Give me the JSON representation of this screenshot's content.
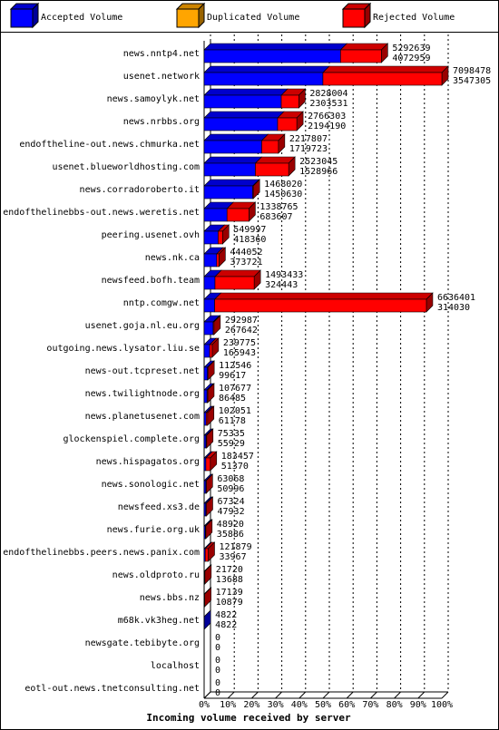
{
  "chart_data": {
    "type": "bar",
    "title": "Incoming volume received by server",
    "series": [
      {
        "name": "Accepted Volume",
        "color": "#0000ff"
      },
      {
        "name": "Duplicated Volume",
        "color": "#ffa500"
      },
      {
        "name": "Rejected Volume",
        "color": "#ff0000"
      }
    ],
    "categories": [
      "news.nntp4.net",
      "usenet.network",
      "news.samoylyk.net",
      "news.nrbbs.org",
      "endoftheline-out.news.chmurka.net",
      "usenet.blueworldhosting.com",
      "news.corradoroberto.it",
      "endofthelinebbs-out.news.weretis.net",
      "peering.usenet.ovh",
      "news.nk.ca",
      "newsfeed.bofh.team",
      "nntp.comgw.net",
      "usenet.goja.nl.eu.org",
      "outgoing.news.lysator.liu.se",
      "news-out.tcpreset.net",
      "news.twilightnode.org",
      "news.planetusenet.com",
      "glockenspiel.complete.org",
      "news.hispagatos.org",
      "news.sonologic.net",
      "newsfeed.xs3.de",
      "news.furie.org.uk",
      "endofthelinebbs.peers.news.panix.com",
      "news.oldproto.ru",
      "news.bbs.nz",
      "m68k.vk3heg.net",
      "newsgate.tebibyte.org",
      "localhost",
      "eotl-out.news.tnetconsulting.net"
    ],
    "totals": [
      5292639,
      7098478,
      2828004,
      2766303,
      2217807,
      2523045,
      1468020,
      1338765,
      549997,
      444052,
      1493433,
      6636401,
      292987,
      239775,
      112546,
      107677,
      102051,
      75335,
      183457,
      63068,
      67324,
      48920,
      121879,
      21720,
      17139,
      4822,
      0,
      0,
      0
    ],
    "accepted": [
      4072959,
      3547305,
      2303531,
      2194190,
      1719723,
      1528966,
      1450630,
      683607,
      418360,
      373721,
      324443,
      314030,
      267642,
      165943,
      99617,
      86485,
      61178,
      55929,
      51370,
      50996,
      47932,
      35886,
      33967,
      13688,
      10879,
      4822,
      0,
      0,
      0
    ],
    "xlim": [
      0,
      7098478
    ],
    "xticks": [
      {
        "value": 0,
        "label": "0%"
      },
      {
        "value": 709847.8,
        "label": "10%"
      },
      {
        "value": 1419695.6,
        "label": "20%"
      },
      {
        "value": 2129543.4,
        "label": "30%"
      },
      {
        "value": 2839391.2,
        "label": "40%"
      },
      {
        "value": 3549239,
        "label": "50%"
      },
      {
        "value": 4259086.8,
        "label": "60%"
      },
      {
        "value": 4968934.6,
        "label": "70%"
      },
      {
        "value": 5678782.4,
        "label": "80%"
      },
      {
        "value": 6388630.2,
        "label": "90%"
      },
      {
        "value": 7098478,
        "label": "100%"
      }
    ]
  }
}
